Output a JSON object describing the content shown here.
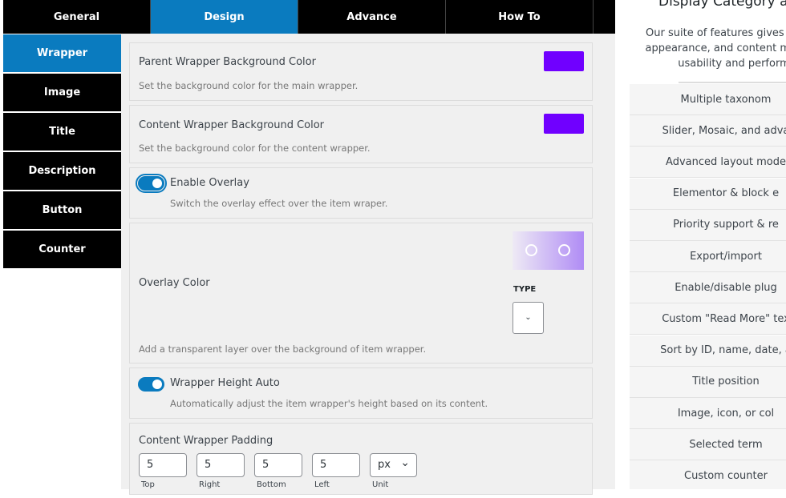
{
  "tabs": [
    "General",
    "Design",
    "Advance",
    "How To"
  ],
  "sidebar": [
    "Wrapper",
    "Image",
    "Title",
    "Description",
    "Button",
    "Counter"
  ],
  "settings": {
    "parent_bg": {
      "label": "Parent Wrapper Background Color",
      "desc": "Set the background color for the main wrapper.",
      "color": "#7000ff"
    },
    "content_bg": {
      "label": "Content Wrapper Background Color",
      "desc": "Set the background color for the content wrapper.",
      "color": "#7000ff"
    },
    "overlay": {
      "label": "Enable Overlay",
      "desc": "Switch the overlay effect over the item wraper.",
      "enabled": true
    },
    "overlay_color": {
      "label": "Overlay Color",
      "type_label": "TYPE",
      "desc": "Add a transparent layer over the background of item wrapper."
    },
    "height_auto": {
      "label": "Wrapper Height Auto",
      "desc": "Automatically adjust the item wrapper's height based on its content.",
      "enabled": true
    },
    "padding": {
      "label": "Content Wrapper Padding",
      "top": "5",
      "right": "5",
      "bottom": "5",
      "left": "5",
      "unit": "px",
      "sub": [
        "Top",
        "Right",
        "Bottom",
        "Left",
        "Unit"
      ]
    }
  },
  "promo": {
    "title": "Display Category and",
    "text": [
      "Our suite of features gives you co",
      "appearance, and content manage",
      "usability and perform"
    ],
    "features": [
      "Multiple taxonom",
      "Slider, Mosaic, and adva",
      "Advanced layout mode",
      "Elementor & block e",
      "Priority support & re",
      "Export/import",
      "Enable/disable plug",
      "Custom \"Read More\" tex",
      "Sort by ID, name, date, a",
      "Title position",
      "Image, icon, or col",
      "Selected term",
      "Custom counter"
    ]
  }
}
